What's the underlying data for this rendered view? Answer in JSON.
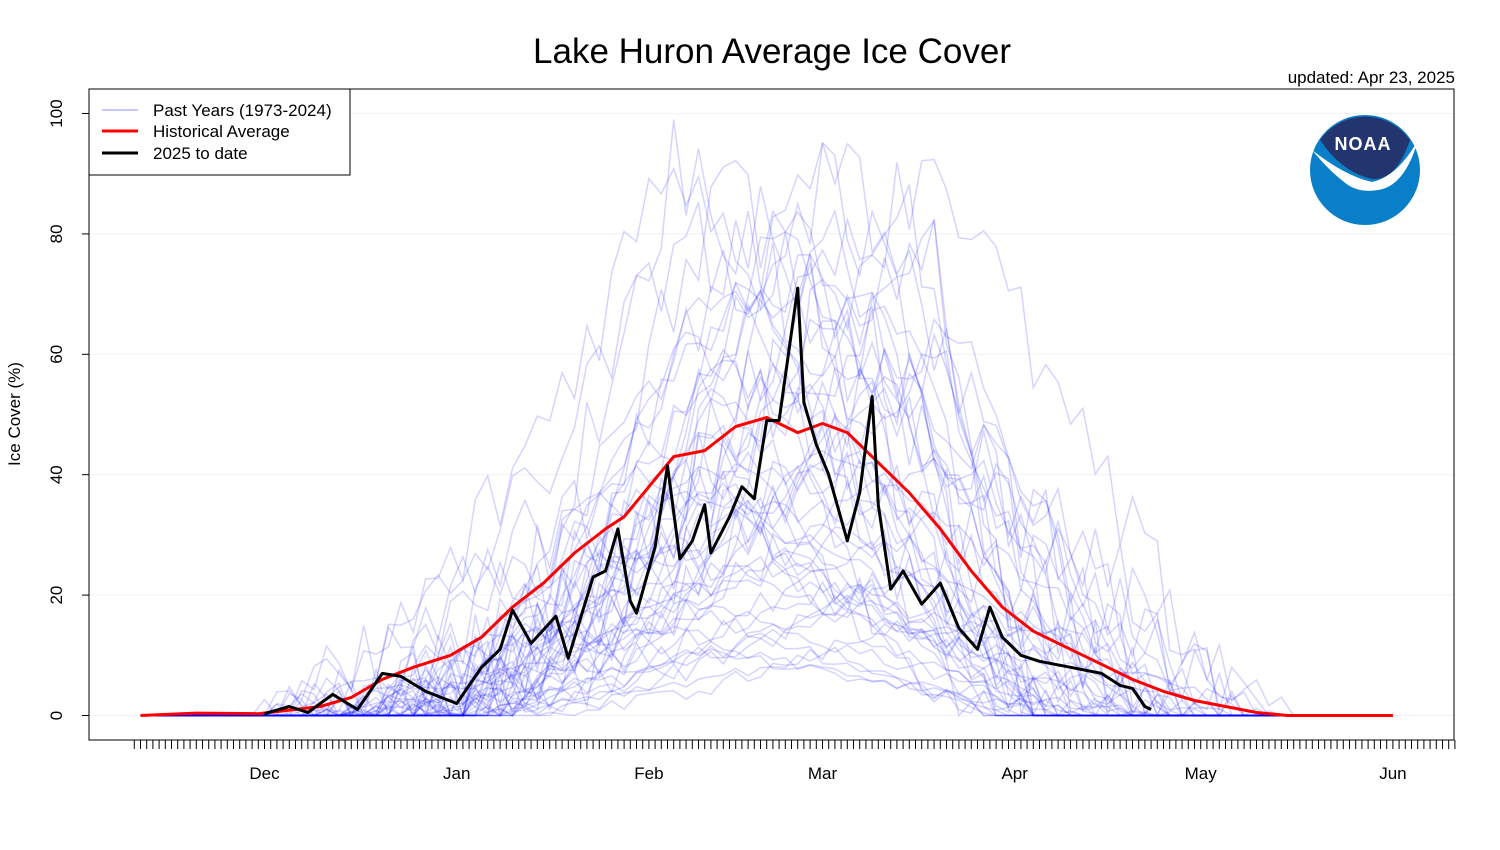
{
  "chart_data": {
    "type": "line",
    "title": "Lake Huron Average Ice Cover",
    "updated": "updated: Apr 23, 2025",
    "xlabel": "",
    "ylabel": "Ice Cover (%)",
    "ylim": [
      0,
      100
    ],
    "yticks": [
      0,
      20,
      40,
      60,
      80,
      100
    ],
    "xlim": [
      "Nov 10",
      "Jun 11"
    ],
    "xticks": [
      {
        "label": "Dec",
        "date": "Dec 1"
      },
      {
        "label": "Jan",
        "date": "Jan 1"
      },
      {
        "label": "Feb",
        "date": "Feb 1"
      },
      {
        "label": "Mar",
        "date": "Mar 1"
      },
      {
        "label": "Apr",
        "date": "Apr 1"
      },
      {
        "label": "May",
        "date": "May 1"
      },
      {
        "label": "Jun",
        "date": "Jun 1"
      }
    ],
    "grid": true,
    "legend_position": "top-left",
    "legend": [
      {
        "label": "Past Years (1973-2024)",
        "color": "#c8c8ff"
      },
      {
        "label": "Historical Average",
        "color": "#ff0000"
      },
      {
        "label": "2025 to date",
        "color": "#000000"
      }
    ],
    "series": [
      {
        "name": "Historical Average",
        "color": "#ff0000",
        "points": [
          [
            "Nov 11",
            0
          ],
          [
            "Nov 20",
            0.4
          ],
          [
            "Nov 30",
            0.3
          ],
          [
            "Dec 10",
            1.5
          ],
          [
            "Dec 15",
            3
          ],
          [
            "Dec 20",
            6
          ],
          [
            "Dec 25",
            8
          ],
          [
            "Dec 31",
            10
          ],
          [
            "Jan 5",
            13
          ],
          [
            "Jan 10",
            18
          ],
          [
            "Jan 15",
            22
          ],
          [
            "Jan 20",
            27
          ],
          [
            "Jan 25",
            31
          ],
          [
            "Jan 28",
            33
          ],
          [
            "Feb 1",
            38
          ],
          [
            "Feb 5",
            43
          ],
          [
            "Feb 10",
            44
          ],
          [
            "Feb 15",
            48
          ],
          [
            "Feb 20",
            49.5
          ],
          [
            "Feb 25",
            47
          ],
          [
            "Mar 1",
            48.5
          ],
          [
            "Mar 5",
            47
          ],
          [
            "Mar 10",
            42
          ],
          [
            "Mar 15",
            37
          ],
          [
            "Mar 20",
            31
          ],
          [
            "Mar 25",
            24
          ],
          [
            "Mar 30",
            18
          ],
          [
            "Apr 4",
            14
          ],
          [
            "Apr 10",
            11
          ],
          [
            "Apr 15",
            8.5
          ],
          [
            "Apr 20",
            6
          ],
          [
            "Apr 25",
            4
          ],
          [
            "Apr 30",
            2.5
          ],
          [
            "May 5",
            1.5
          ],
          [
            "May 10",
            0.5
          ],
          [
            "May 15",
            0
          ],
          [
            "Jun 1",
            0
          ]
        ]
      },
      {
        "name": "2025 to date",
        "color": "#000000",
        "points": [
          [
            "Dec 1",
            0.3
          ],
          [
            "Dec 5",
            1.5
          ],
          [
            "Dec 8",
            0.5
          ],
          [
            "Dec 12",
            3.5
          ],
          [
            "Dec 16",
            1
          ],
          [
            "Dec 20",
            7
          ],
          [
            "Dec 23",
            6.5
          ],
          [
            "Dec 27",
            4
          ],
          [
            "Jan 1",
            2
          ],
          [
            "Jan 5",
            8
          ],
          [
            "Jan 8",
            11
          ],
          [
            "Jan 10",
            17.5
          ],
          [
            "Jan 13",
            12
          ],
          [
            "Jan 17",
            16.5
          ],
          [
            "Jan 19",
            9.5
          ],
          [
            "Jan 23",
            23
          ],
          [
            "Jan 25",
            24
          ],
          [
            "Jan 27",
            31
          ],
          [
            "Jan 29",
            19
          ],
          [
            "Jan 30",
            17
          ],
          [
            "Feb 2",
            28
          ],
          [
            "Feb 4",
            41.5
          ],
          [
            "Feb 6",
            26
          ],
          [
            "Feb 8",
            29
          ],
          [
            "Feb 10",
            35
          ],
          [
            "Feb 11",
            27
          ],
          [
            "Feb 14",
            33
          ],
          [
            "Feb 16",
            38
          ],
          [
            "Feb 18",
            36
          ],
          [
            "Feb 20",
            49
          ],
          [
            "Feb 22",
            49
          ],
          [
            "Feb 25",
            71
          ],
          [
            "Feb 26",
            52
          ],
          [
            "Feb 28",
            45
          ],
          [
            "Mar 2",
            40
          ],
          [
            "Mar 5",
            29
          ],
          [
            "Mar 7",
            37
          ],
          [
            "Mar 9",
            53
          ],
          [
            "Mar 10",
            35
          ],
          [
            "Mar 12",
            21
          ],
          [
            "Mar 14",
            24
          ],
          [
            "Mar 17",
            18.5
          ],
          [
            "Mar 20",
            22
          ],
          [
            "Mar 23",
            14.5
          ],
          [
            "Mar 26",
            11
          ],
          [
            "Mar 28",
            18
          ],
          [
            "Mar 30",
            13
          ],
          [
            "Apr 2",
            10
          ],
          [
            "Apr 5",
            9
          ],
          [
            "Apr 10",
            8
          ],
          [
            "Apr 15",
            7
          ],
          [
            "Apr 18",
            5
          ],
          [
            "Apr 20",
            4.5
          ],
          [
            "Apr 22",
            1.5
          ],
          [
            "Apr 23",
            1
          ]
        ]
      }
    ]
  },
  "logo": {
    "text": "NOAA",
    "name": "noaa-logo"
  }
}
